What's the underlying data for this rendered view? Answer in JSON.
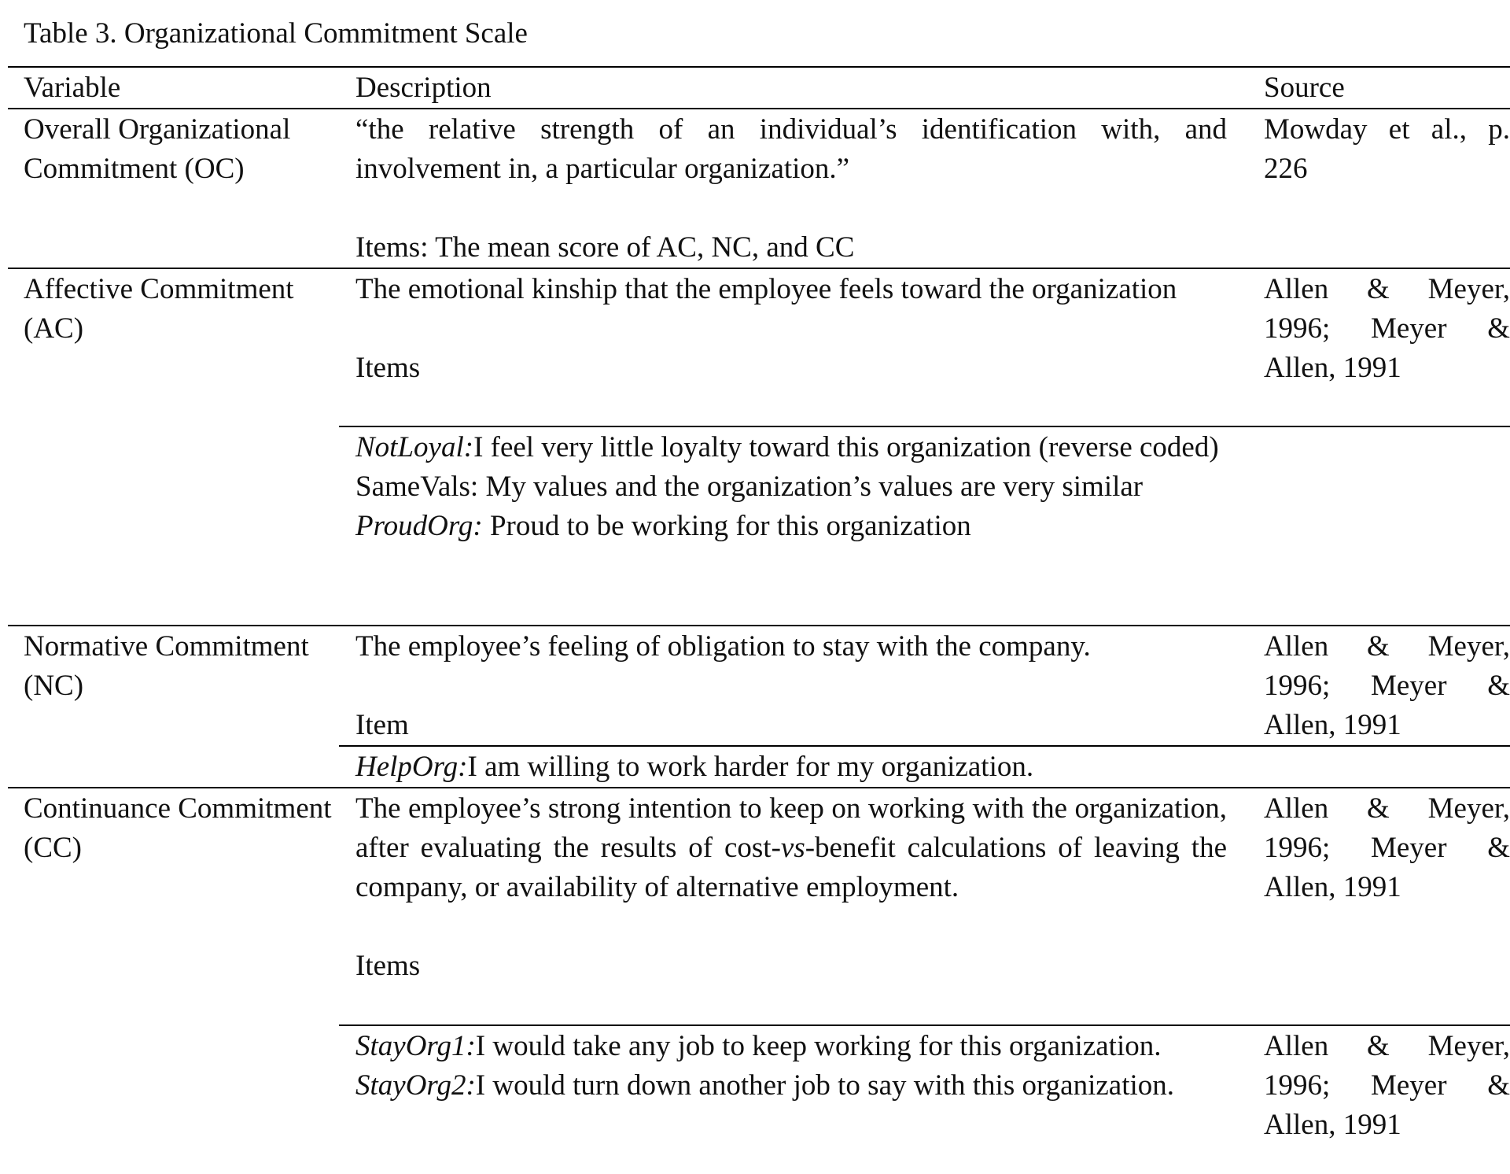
{
  "title": "Table 3. Organizational Commitment Scale",
  "headers": {
    "variable": "Variable",
    "description": "Description",
    "source": "Source"
  },
  "rows": [
    {
      "variable": "Overall Organizational Commitment (OC)",
      "description": "“the relative strength of an individual’s identification with, and involvement in, a particular organization.”",
      "items_label": "Items: The mean score of AC, NC, and CC",
      "source": "Mowday et al., p. 226"
    },
    {
      "variable": "Affective Commitment (AC)",
      "description": "The emotional kinship that the employee feels toward the organization",
      "items_label": "Items",
      "source": "Allen & Meyer, 1996; Meyer & Allen, 1991",
      "items": [
        {
          "name": "NotLoyal:",
          "name_italic": true,
          "text": "I feel very little loyalty toward this organization (reverse coded)"
        },
        {
          "name": "SameVals:",
          "name_italic": false,
          "text": " My values and the organization’s values are very similar"
        },
        {
          "name": "ProudOrg:",
          "name_italic": true,
          "text": " Proud to be working for this organization"
        }
      ]
    },
    {
      "variable": "Normative Commitment (NC)",
      "description": "The employee’s feeling of obligation to stay with the company.",
      "items_label": "Item",
      "source": "Allen & Meyer, 1996; Meyer & Allen, 1991",
      "items": [
        {
          "name": "HelpOrg:",
          "name_italic": true,
          "text": "I am willing to work harder for my organization."
        }
      ]
    },
    {
      "variable": "Continuance Commitment (CC)",
      "description_before": "The employee’s strong intention to keep on working with the organization, after evaluating the results of cost-",
      "description_italic": "vs",
      "description_after": "-benefit calculations of leaving the company, or availability of alternative employment.",
      "items_label": "Items",
      "source": "",
      "items_source": "Allen & Meyer, 1996; Meyer & Allen, 1991",
      "items": [
        {
          "name": "StayOrg1:",
          "name_italic": true,
          "text": "I would take any job to keep working for this organization."
        },
        {
          "name": "StayOrg2:",
          "name_italic": true,
          "text": "I would turn down another job to say with this organization."
        }
      ]
    }
  ]
}
